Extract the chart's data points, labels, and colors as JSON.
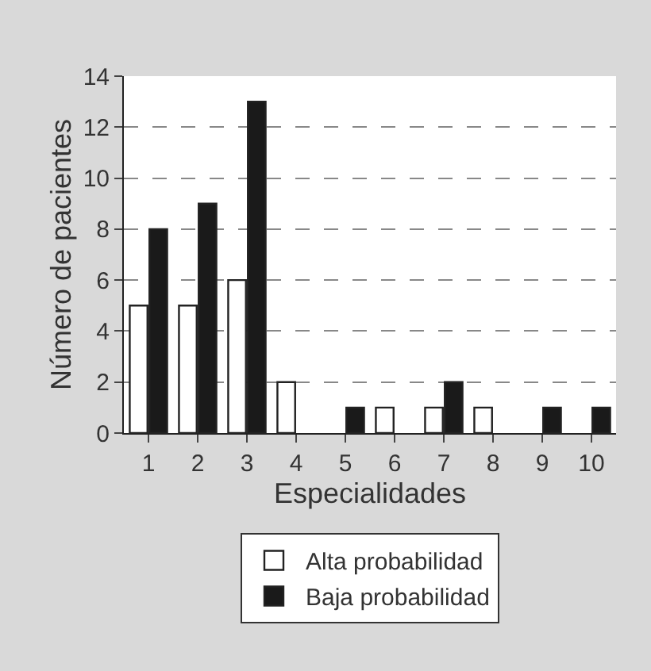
{
  "chart_data": {
    "type": "bar",
    "xlabel": "Especialidades",
    "ylabel": "Número de pacientes",
    "categories": [
      "1",
      "2",
      "3",
      "4",
      "5",
      "6",
      "7",
      "8",
      "9",
      "10"
    ],
    "series": [
      {
        "name": "Alta probabilidad",
        "color": "#ffffff",
        "values": [
          5,
          5,
          6,
          2,
          null,
          1,
          1,
          1,
          null,
          null
        ]
      },
      {
        "name": "Baja probabilidad",
        "color": "#1a1a1a",
        "values": [
          8,
          9,
          13,
          null,
          1,
          null,
          2,
          null,
          1,
          1
        ]
      }
    ],
    "ylim": [
      0,
      14
    ],
    "yticks": [
      0,
      2,
      4,
      6,
      8,
      10,
      12,
      14
    ],
    "grid": "y",
    "legend": "bottom"
  }
}
